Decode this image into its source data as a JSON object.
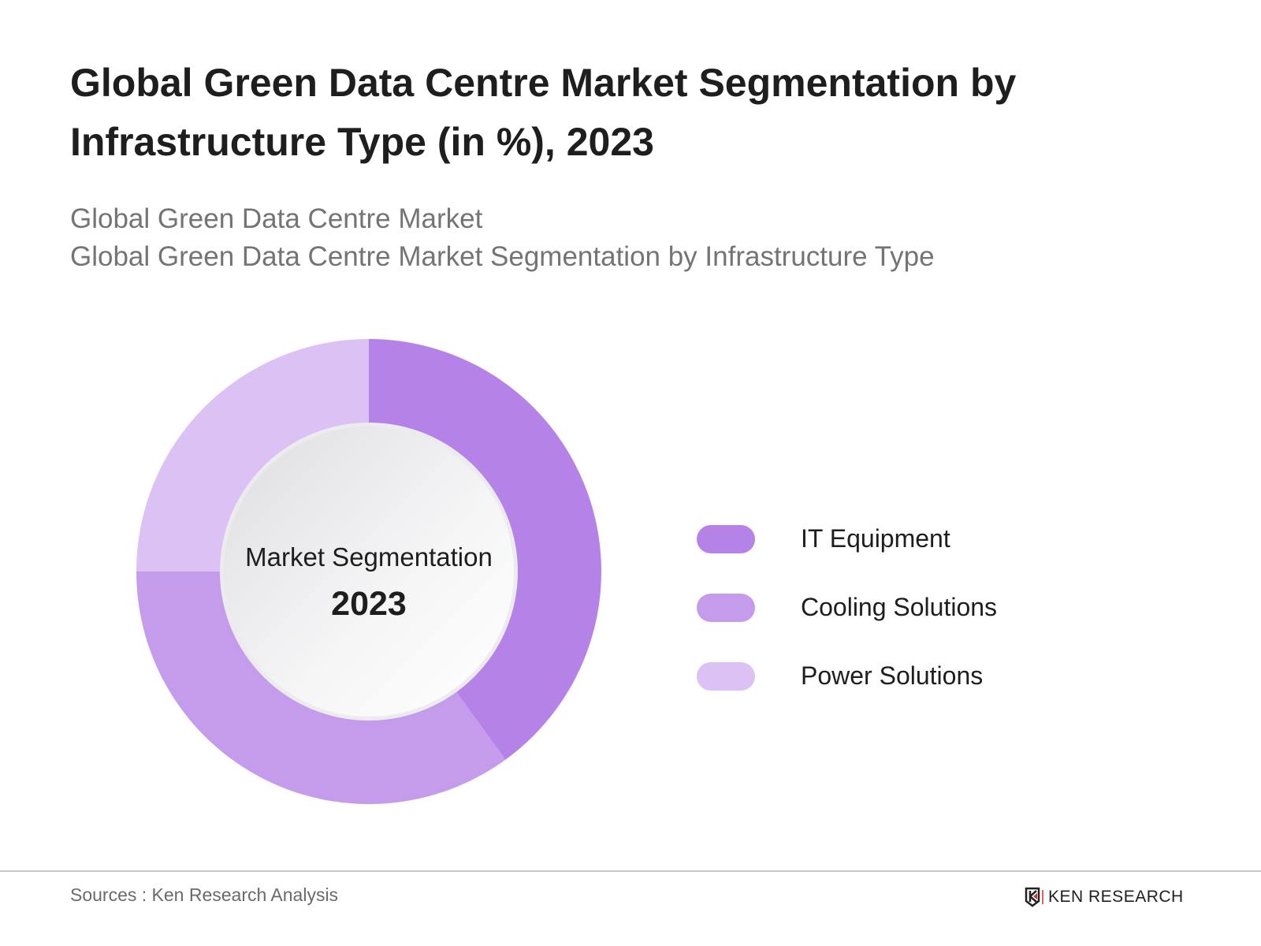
{
  "header": {
    "title": "Global Green Data Centre Market Segmentation by Infrastructure Type (in %), 2023",
    "subtitle_1": "Global Green Data Centre Market",
    "subtitle_2": "Global Green Data Centre Market Segmentation by Infrastructure Type"
  },
  "chart_data": {
    "type": "pie",
    "variant": "donut",
    "title": "Global Green Data Centre Market Segmentation by Infrastructure Type (in %), 2023",
    "center_label": "Market Segmentation",
    "center_value": "2023",
    "legend_placement": "right",
    "categories": [
      "IT Equipment",
      "Cooling Solutions",
      "Power Solutions"
    ],
    "values": [
      40,
      35,
      25
    ],
    "colors": [
      "#b583e8",
      "#c59bec",
      "#dcc1f5"
    ]
  },
  "footer": {
    "source": "Sources : Ken Research Analysis",
    "logo_text": "KEN RESEARCH"
  }
}
